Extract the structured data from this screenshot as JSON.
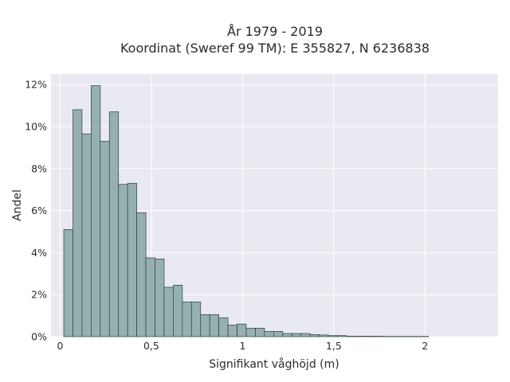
{
  "chart_data": {
    "type": "bar",
    "title_lines": [
      "År 1979 - 2019",
      "Koordinat (Sweref 99 TM): E 355827, N 6236838"
    ],
    "xlabel": "Signifikant våghöjd (m)",
    "ylabel": "Andel",
    "xlim": [
      -0.05,
      2.4
    ],
    "ylim": [
      0,
      12.5
    ],
    "x_ticks": [
      {
        "value": 0,
        "label": "0"
      },
      {
        "value": 0.5,
        "label": "0,5"
      },
      {
        "value": 1,
        "label": "1"
      },
      {
        "value": 1.5,
        "label": "1,5"
      },
      {
        "value": 2,
        "label": "2"
      }
    ],
    "y_ticks": [
      {
        "value": 0,
        "label": "0%"
      },
      {
        "value": 2,
        "label": "2%"
      },
      {
        "value": 4,
        "label": "4%"
      },
      {
        "value": 6,
        "label": "6%"
      },
      {
        "value": 8,
        "label": "8%"
      },
      {
        "value": 10,
        "label": "10%"
      },
      {
        "value": 12,
        "label": "12%"
      }
    ],
    "grid": true,
    "bar_color": "#96b0b0",
    "bar_edge_color": "#2f3f3f",
    "bin_start": 0.02,
    "bin_width": 0.05,
    "values": [
      5.1,
      10.8,
      9.65,
      11.95,
      9.3,
      10.7,
      7.25,
      7.3,
      5.9,
      3.75,
      3.7,
      2.35,
      2.45,
      1.65,
      1.65,
      1.05,
      1.05,
      0.9,
      0.55,
      0.6,
      0.4,
      0.4,
      0.25,
      0.25,
      0.15,
      0.15,
      0.15,
      0.1,
      0.08,
      0.05,
      0.05,
      0.02,
      0.02,
      0.02,
      0.02,
      0.01,
      0.01,
      0.01,
      0.01,
      0.01
    ]
  },
  "colors": {
    "plot_background": "#e9e9f1",
    "grid": "#ffffff",
    "text": "#2b2b2b"
  }
}
